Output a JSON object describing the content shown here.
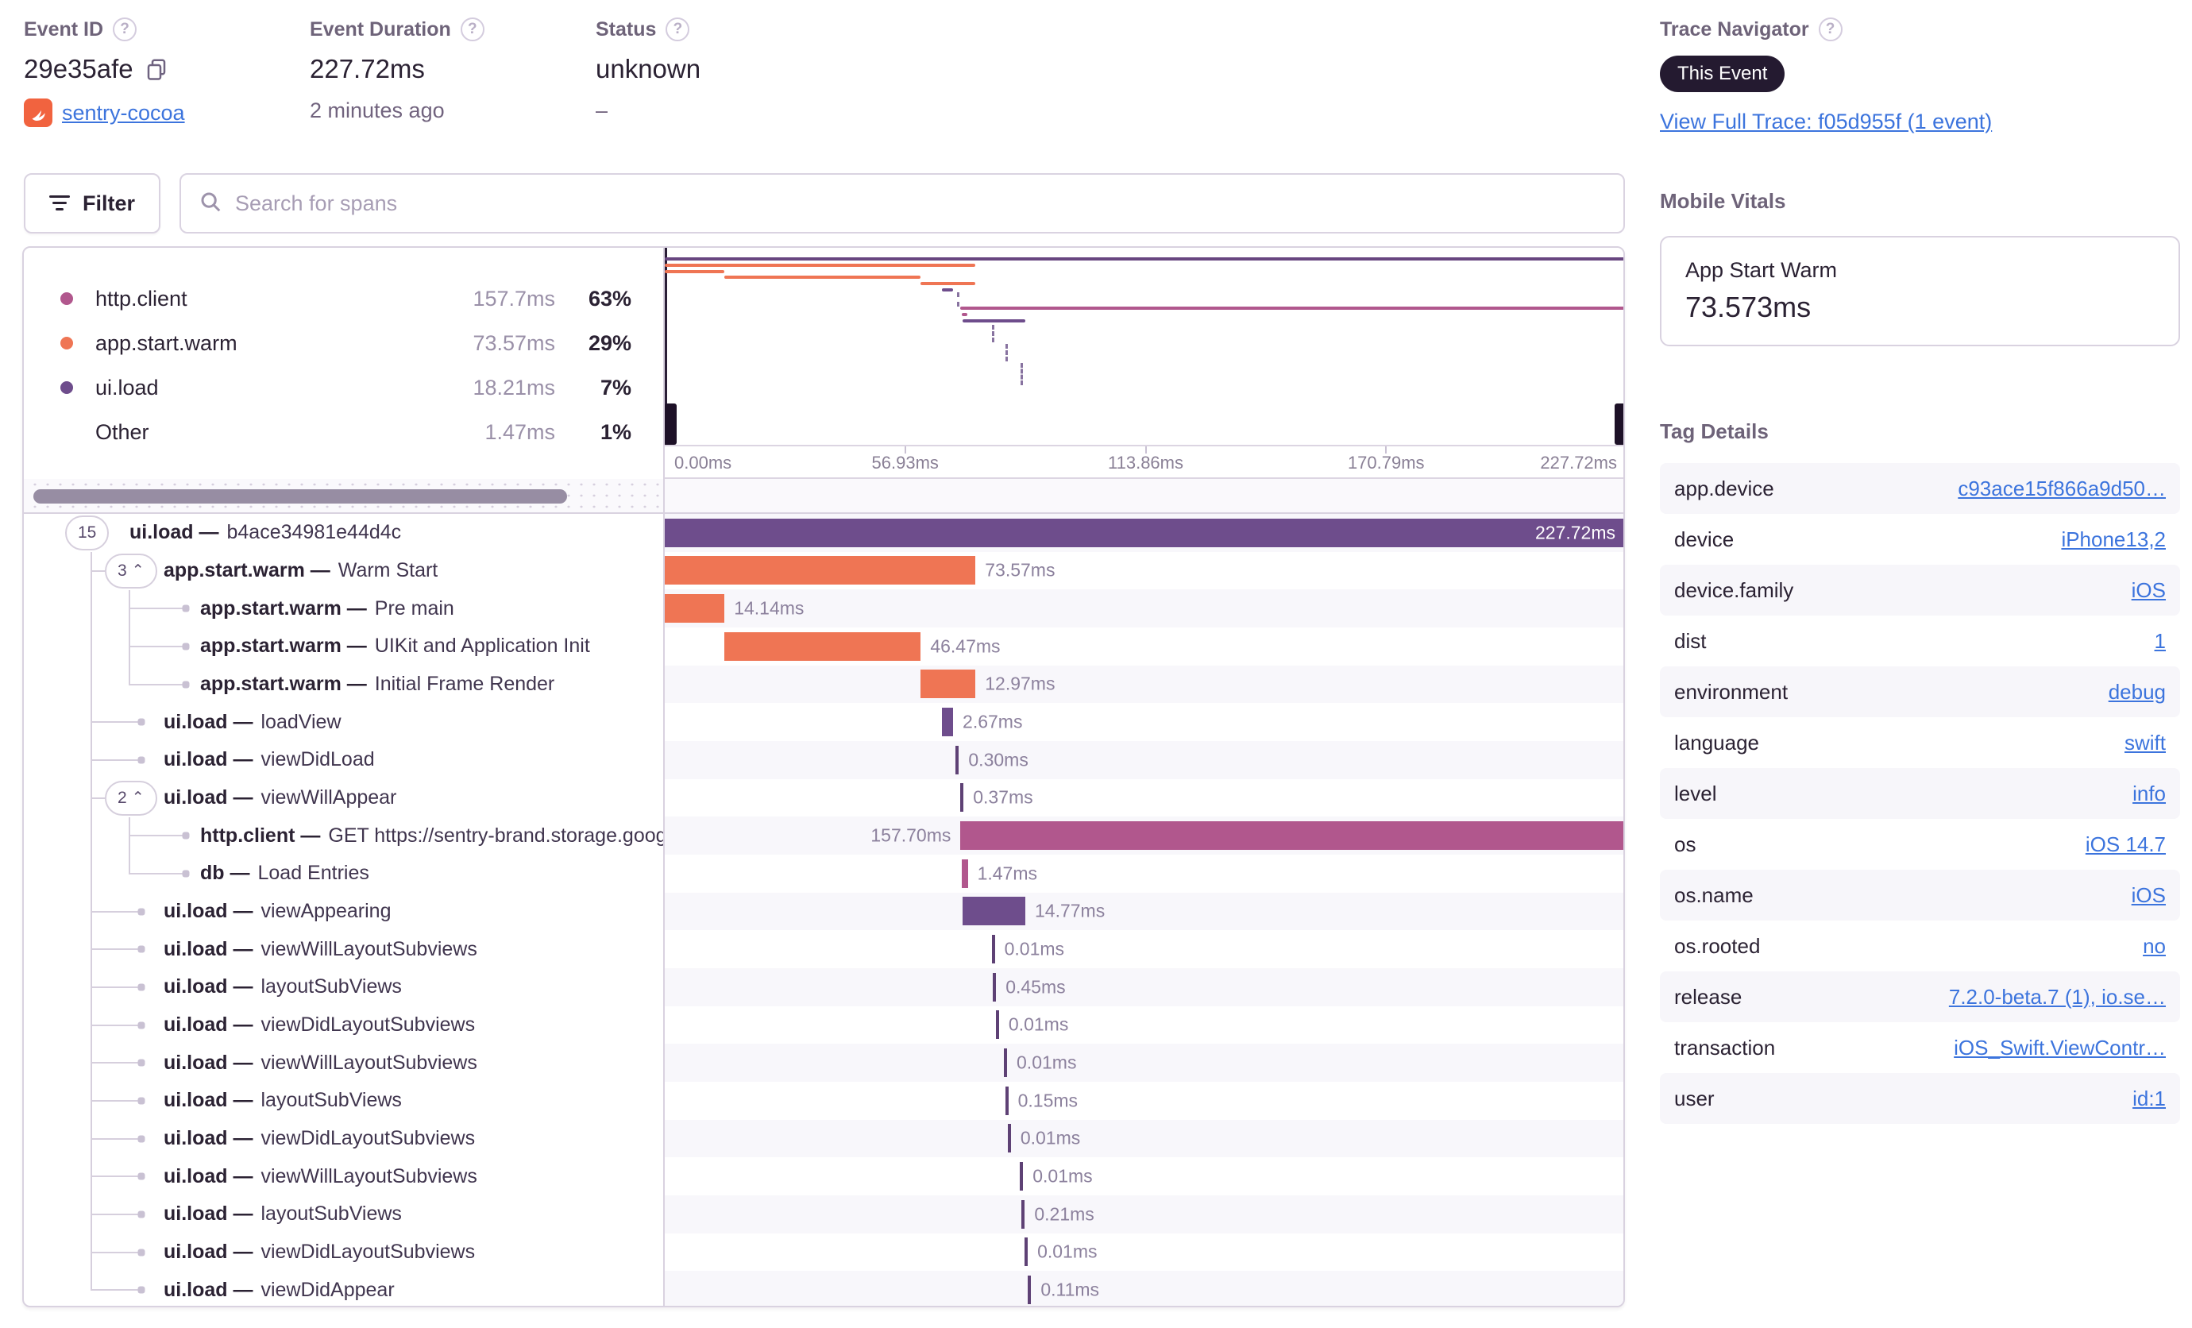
{
  "icons": {
    "help_glyph": "?",
    "chevron_up": "⌃"
  },
  "header": {
    "event_id_label": "Event ID",
    "event_id": "29e35afe",
    "project_name": "sentry-cocoa",
    "duration_label": "Event Duration",
    "duration_value": "227.72ms",
    "duration_age": "2 minutes ago",
    "status_label": "Status",
    "status_value": "unknown",
    "status_sub": "–",
    "trace_label": "Trace Navigator",
    "trace_badge": "This Event",
    "trace_link": "View Full Trace: f05d955f (1 event)"
  },
  "toolbar": {
    "filter_label": "Filter",
    "search_placeholder": "Search for spans"
  },
  "legend": {
    "rows": [
      {
        "name": "http.client",
        "duration": "157.7ms",
        "pct": "63%",
        "color": "#B1578D"
      },
      {
        "name": "app.start.warm",
        "duration": "73.57ms",
        "pct": "29%",
        "color": "#EF7554"
      },
      {
        "name": "ui.load",
        "duration": "18.21ms",
        "pct": "7%",
        "color": "#6E4D8C"
      },
      {
        "name": "Other",
        "duration": "1.47ms",
        "pct": "1%",
        "color": null
      }
    ]
  },
  "trace": {
    "total_ms": 227.72,
    "separator": "—",
    "axis_ticks": [
      "0.00ms",
      "56.93ms",
      "113.86ms",
      "170.79ms",
      "227.72ms"
    ],
    "colors": {
      "purple": "#6E4D8C",
      "purple_dark": "#5E4175",
      "orange": "#EF7554",
      "magenta": "#B1578D",
      "root": "#684680"
    },
    "spans": [
      {
        "depth": 0,
        "badge": "15",
        "chevron": false,
        "op": "ui.load",
        "desc": "b4ace34981e44d4c",
        "start_ms": 0,
        "dur_ms": 227.72,
        "dur_label": "227.72ms",
        "color": "purple",
        "label_pos": "inside"
      },
      {
        "depth": 1,
        "badge": "3",
        "chevron": true,
        "op": "app.start.warm",
        "desc": "Warm Start",
        "start_ms": 0,
        "dur_ms": 73.57,
        "dur_label": "73.57ms",
        "color": "orange",
        "label_pos": "right"
      },
      {
        "depth": 2,
        "op": "app.start.warm",
        "desc": "Pre main",
        "start_ms": 0,
        "dur_ms": 14.14,
        "dur_label": "14.14ms",
        "color": "orange",
        "label_pos": "right"
      },
      {
        "depth": 2,
        "op": "app.start.warm",
        "desc": "UIKit and Application Init",
        "start_ms": 14.14,
        "dur_ms": 46.47,
        "dur_label": "46.47ms",
        "color": "orange",
        "label_pos": "right"
      },
      {
        "depth": 2,
        "op": "app.start.warm",
        "desc": "Initial Frame Render",
        "start_ms": 60.6,
        "dur_ms": 12.97,
        "dur_label": "12.97ms",
        "color": "orange",
        "label_pos": "right"
      },
      {
        "depth": 1,
        "op": "ui.load",
        "desc": "loadView",
        "start_ms": 65.6,
        "dur_ms": 2.67,
        "dur_label": "2.67ms",
        "color": "purple",
        "label_pos": "right"
      },
      {
        "depth": 1,
        "op": "ui.load",
        "desc": "viewDidLoad",
        "start_ms": 68.9,
        "dur_ms": 0.3,
        "dur_label": "0.30ms",
        "color": "purple",
        "label_pos": "right",
        "tick": true
      },
      {
        "depth": 1,
        "badge": "2",
        "chevron": true,
        "op": "ui.load",
        "desc": "viewWillAppear",
        "start_ms": 70.0,
        "dur_ms": 0.37,
        "dur_label": "0.37ms",
        "color": "purple",
        "label_pos": "right",
        "tick": true
      },
      {
        "depth": 2,
        "op": "http.client",
        "desc": "GET https://sentry-brand.storage.googlea",
        "start_ms": 70.02,
        "dur_ms": 157.7,
        "dur_label": "157.70ms",
        "color": "magenta",
        "label_pos": "left"
      },
      {
        "depth": 2,
        "op": "db",
        "desc": "Load Entries",
        "start_ms": 70.25,
        "dur_ms": 1.47,
        "dur_label": "1.47ms",
        "color": "magenta",
        "label_pos": "right"
      },
      {
        "depth": 1,
        "op": "ui.load",
        "desc": "viewAppearing",
        "start_ms": 70.6,
        "dur_ms": 14.77,
        "dur_label": "14.77ms",
        "color": "purple",
        "label_pos": "right"
      },
      {
        "depth": 1,
        "op": "ui.load",
        "desc": "viewWillLayoutSubviews",
        "start_ms": 77.4,
        "dur_ms": 0.01,
        "dur_label": "0.01ms",
        "color": "purple",
        "label_pos": "right",
        "tick": true
      },
      {
        "depth": 1,
        "op": "ui.load",
        "desc": "layoutSubViews",
        "start_ms": 77.7,
        "dur_ms": 0.45,
        "dur_label": "0.45ms",
        "color": "purple",
        "label_pos": "right",
        "tick": true
      },
      {
        "depth": 1,
        "op": "ui.load",
        "desc": "viewDidLayoutSubviews",
        "start_ms": 78.4,
        "dur_ms": 0.01,
        "dur_label": "0.01ms",
        "color": "purple",
        "label_pos": "right",
        "tick": true
      },
      {
        "depth": 1,
        "op": "ui.load",
        "desc": "viewWillLayoutSubviews",
        "start_ms": 80.3,
        "dur_ms": 0.01,
        "dur_label": "0.01ms",
        "color": "purple",
        "label_pos": "right",
        "tick": true
      },
      {
        "depth": 1,
        "op": "ui.load",
        "desc": "layoutSubViews",
        "start_ms": 80.6,
        "dur_ms": 0.15,
        "dur_label": "0.15ms",
        "color": "purple",
        "label_pos": "right",
        "tick": true
      },
      {
        "depth": 1,
        "op": "ui.load",
        "desc": "viewDidLayoutSubviews",
        "start_ms": 81.2,
        "dur_ms": 0.01,
        "dur_label": "0.01ms",
        "color": "purple",
        "label_pos": "right",
        "tick": true
      },
      {
        "depth": 1,
        "op": "ui.load",
        "desc": "viewWillLayoutSubviews",
        "start_ms": 84.1,
        "dur_ms": 0.01,
        "dur_label": "0.01ms",
        "color": "purple",
        "label_pos": "right",
        "tick": true
      },
      {
        "depth": 1,
        "op": "ui.load",
        "desc": "layoutSubViews",
        "start_ms": 84.5,
        "dur_ms": 0.21,
        "dur_label": "0.21ms",
        "color": "purple",
        "label_pos": "right",
        "tick": true
      },
      {
        "depth": 1,
        "op": "ui.load",
        "desc": "viewDidLayoutSubviews",
        "start_ms": 85.2,
        "dur_ms": 0.01,
        "dur_label": "0.01ms",
        "color": "purple",
        "label_pos": "right",
        "tick": true
      },
      {
        "depth": 1,
        "op": "ui.load",
        "desc": "viewDidAppear",
        "start_ms": 86.0,
        "dur_ms": 0.11,
        "dur_label": "0.11ms",
        "color": "purple",
        "label_pos": "right",
        "tick": true
      }
    ]
  },
  "sidebar": {
    "vitals_heading": "Mobile Vitals",
    "vitals_card": {
      "title": "App Start Warm",
      "value": "73.573ms"
    },
    "tags_heading": "Tag Details",
    "tags": [
      {
        "key": "app.device",
        "value": "c93ace15f866a9d50…"
      },
      {
        "key": "device",
        "value": "iPhone13,2"
      },
      {
        "key": "device.family",
        "value": "iOS"
      },
      {
        "key": "dist",
        "value": "1"
      },
      {
        "key": "environment",
        "value": "debug"
      },
      {
        "key": "language",
        "value": "swift"
      },
      {
        "key": "level",
        "value": "info"
      },
      {
        "key": "os",
        "value": "iOS 14.7"
      },
      {
        "key": "os.name",
        "value": "iOS"
      },
      {
        "key": "os.rooted",
        "value": "no"
      },
      {
        "key": "release",
        "value": "7.2.0-beta.7 (1), io.se…"
      },
      {
        "key": "transaction",
        "value": "iOS_Swift.ViewContr…"
      },
      {
        "key": "user",
        "value": "id:1"
      }
    ]
  }
}
